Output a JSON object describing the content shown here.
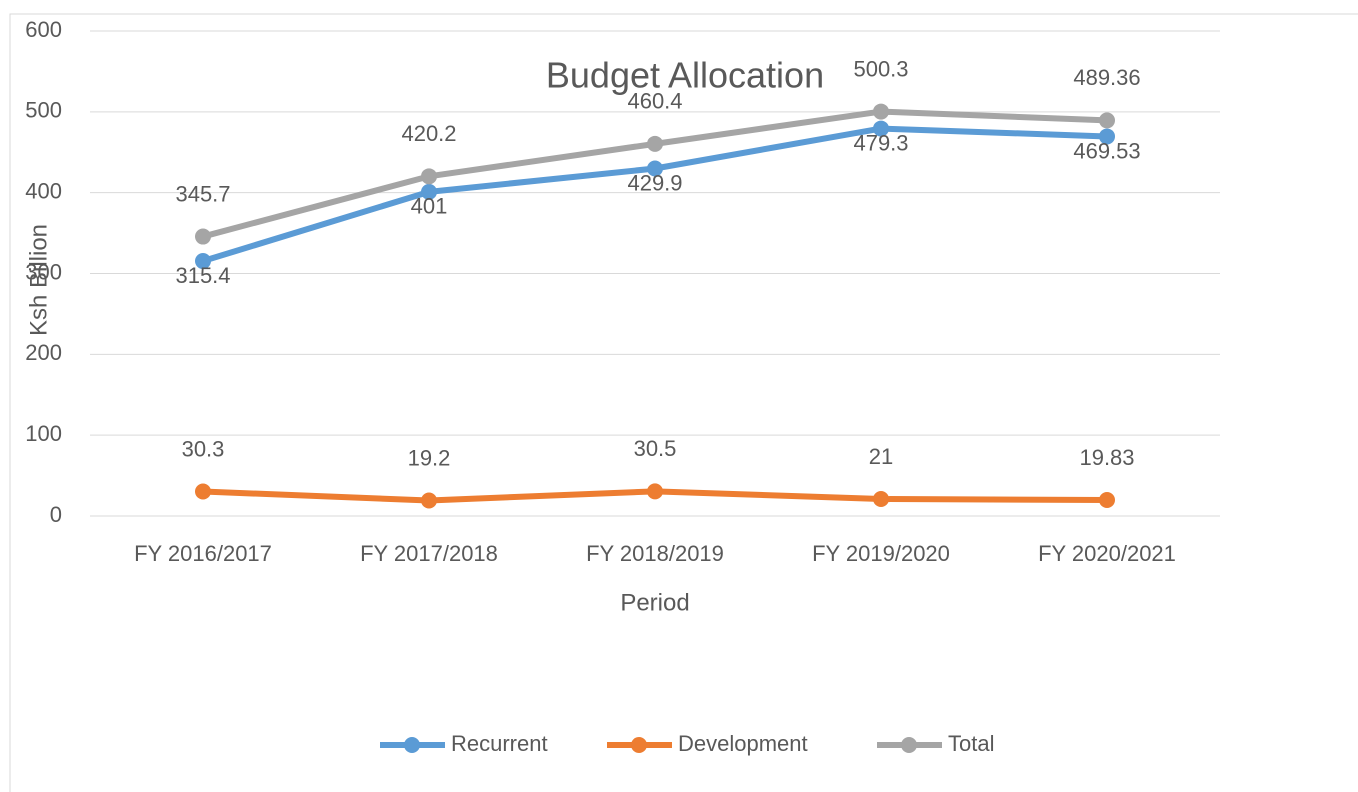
{
  "chart_data": {
    "type": "line",
    "title": "Budget Allocation",
    "x_label": "Period",
    "y_label": "Ksh Billion",
    "categories": [
      "FY 2016/2017",
      "FY 2017/2018",
      "FY 2018/2019",
      "FY 2019/2020",
      "FY 2020/2021"
    ],
    "series": [
      {
        "name": "Recurrent",
        "color": "#5b9bd5",
        "values": [
          315.4,
          401,
          429.9,
          479.3,
          469.53
        ],
        "label_position": "below"
      },
      {
        "name": "Development",
        "color": "#ed7d31",
        "values": [
          30.3,
          19.2,
          30.5,
          21,
          19.83
        ],
        "label_position": "above"
      },
      {
        "name": "Total",
        "color": "#a5a5a5",
        "values": [
          345.7,
          420.2,
          460.4,
          500.3,
          489.36
        ],
        "label_position": "above"
      }
    ],
    "ylim": [
      0,
      600
    ],
    "yticks": [
      0,
      100,
      200,
      300,
      400,
      500,
      600
    ],
    "grid": true,
    "legend": "bottom"
  }
}
